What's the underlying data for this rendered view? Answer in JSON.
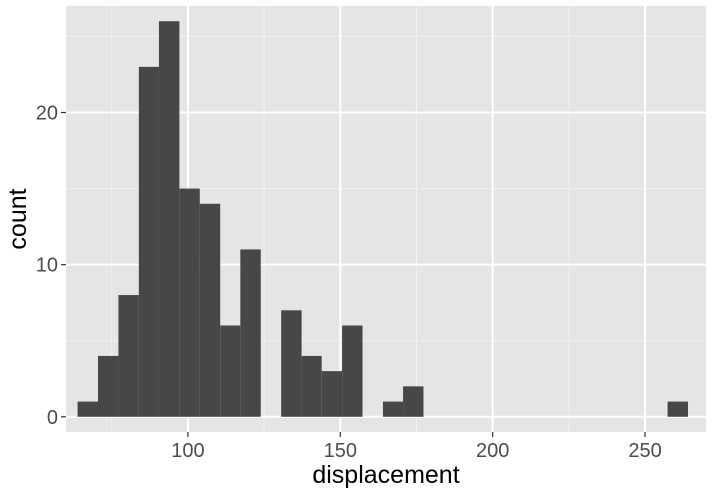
{
  "chart_data": {
    "type": "bar",
    "subtype": "histogram",
    "xlabel": "displacement",
    "ylabel": "count",
    "xlim": [
      60,
      270
    ],
    "ylim": [
      -1,
      27
    ],
    "x_ticks": [
      100,
      150,
      200,
      250
    ],
    "y_ticks": [
      0,
      10,
      20
    ],
    "grid": true,
    "legend": "none",
    "bins": [
      {
        "x0": 63.8,
        "x1": 70.5,
        "count": 1
      },
      {
        "x0": 70.5,
        "x1": 77.2,
        "count": 4
      },
      {
        "x0": 77.2,
        "x1": 83.9,
        "count": 8
      },
      {
        "x0": 83.9,
        "x1": 90.5,
        "count": 23
      },
      {
        "x0": 90.5,
        "x1": 97.2,
        "count": 26
      },
      {
        "x0": 97.2,
        "x1": 103.9,
        "count": 15
      },
      {
        "x0": 103.9,
        "x1": 110.6,
        "count": 14
      },
      {
        "x0": 110.6,
        "x1": 117.2,
        "count": 6
      },
      {
        "x0": 117.2,
        "x1": 123.9,
        "count": 11
      },
      {
        "x0": 123.9,
        "x1": 130.6,
        "count": 0
      },
      {
        "x0": 130.6,
        "x1": 137.3,
        "count": 7
      },
      {
        "x0": 137.3,
        "x1": 143.9,
        "count": 4
      },
      {
        "x0": 143.9,
        "x1": 150.6,
        "count": 3
      },
      {
        "x0": 150.6,
        "x1": 157.3,
        "count": 6
      },
      {
        "x0": 157.3,
        "x1": 164.0,
        "count": 0
      },
      {
        "x0": 164.0,
        "x1": 170.6,
        "count": 1
      },
      {
        "x0": 170.6,
        "x1": 177.3,
        "count": 2
      },
      {
        "x0": 257.4,
        "x1": 264.1,
        "count": 1
      }
    ],
    "colors": {
      "panel": "#e5e5e5",
      "grid_major": "#ffffff",
      "grid_minor": "#f2f2f2",
      "bar": "#474747"
    }
  }
}
